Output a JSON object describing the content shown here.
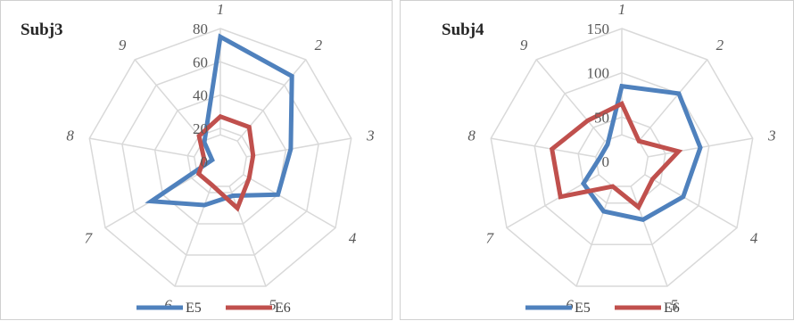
{
  "chart_data": [
    {
      "type": "radar",
      "title": "Subj3",
      "axes": [
        "1",
        "2",
        "3",
        "4",
        "5",
        "6",
        "7",
        "8",
        "9"
      ],
      "ticks": [
        0,
        20,
        40,
        60,
        80
      ],
      "rmax": 80,
      "grid": true,
      "legend_position": "bottom",
      "series": [
        {
          "name": "E5",
          "color": "#4f81bd",
          "values": [
            75,
            67,
            43,
            40,
            22,
            28,
            48,
            5,
            15
          ]
        },
        {
          "name": "E6",
          "color": "#c0504d",
          "values": [
            27,
            27,
            20,
            20,
            30,
            15,
            15,
            10,
            20
          ]
        }
      ]
    },
    {
      "type": "radar",
      "title": "Subj4",
      "axes": [
        "1",
        "2",
        "3",
        "4",
        "5",
        "6",
        "7",
        "8",
        "9"
      ],
      "ticks": [
        0,
        50,
        100,
        150
      ],
      "rmax": 150,
      "grid": true,
      "legend_position": "bottom",
      "series": [
        {
          "name": "E5",
          "color": "#4f81bd",
          "values": [
            85,
            100,
            90,
            80,
            70,
            60,
            50,
            25,
            25
          ]
        },
        {
          "name": "E6",
          "color": "#c0504d",
          "values": [
            65,
            30,
            65,
            40,
            55,
            30,
            80,
            80,
            60
          ]
        }
      ]
    }
  ]
}
